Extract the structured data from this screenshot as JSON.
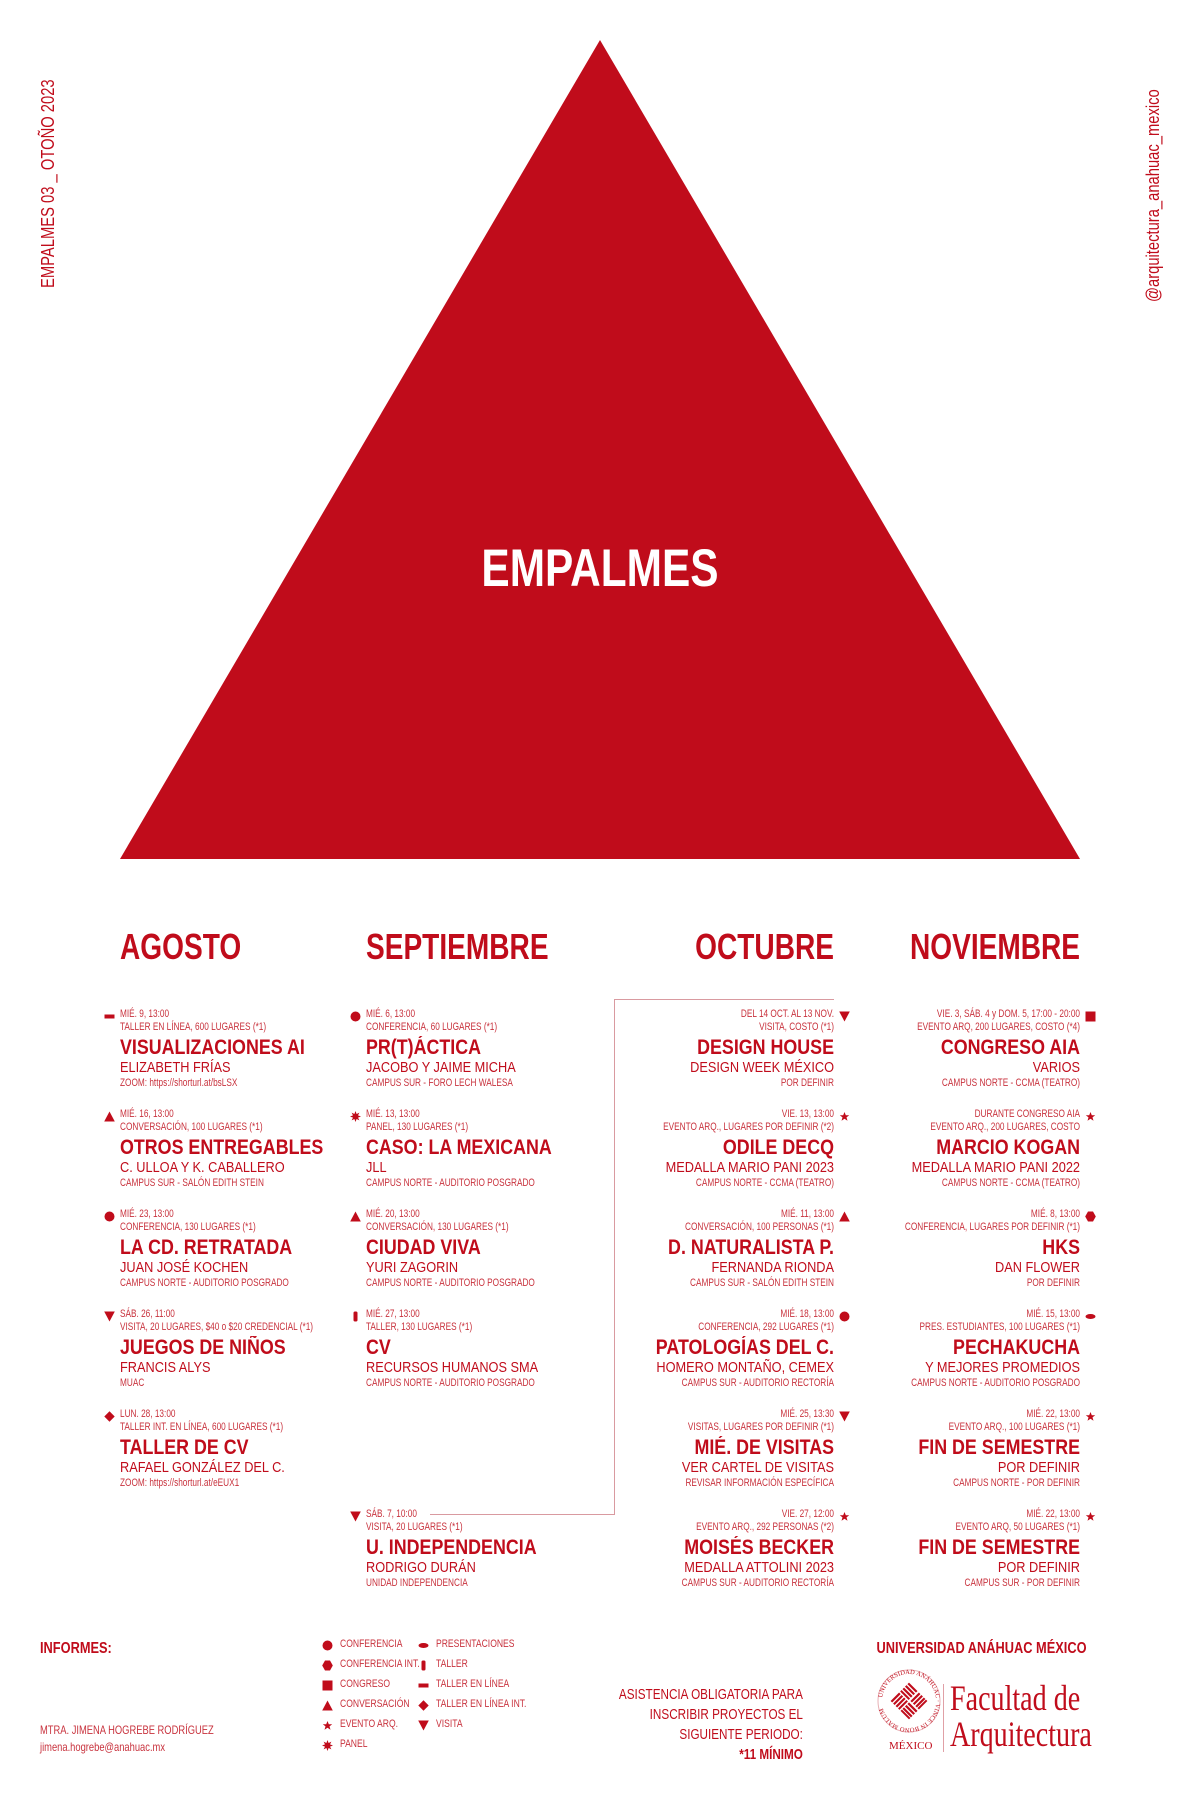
{
  "side_left": "EMPALMES 03 _ OTOÑO 2023",
  "side_right": "@arquitectura_anahuac_mexico",
  "hero_title": "EMPALMES",
  "colors": {
    "brand_red": "#c00c1b",
    "light_red": "#c8323d",
    "background": "#ffffff"
  },
  "months": [
    {
      "name": "AGOSTO",
      "events": [
        {
          "icon": "taller-en-linea",
          "date": "MIÉ. 9, 13:00",
          "type": "TALLER EN LÍNEA, 600 LUGARES (*1)",
          "title": "VISUALIZACIONES AI",
          "subtitle": "ELIZABETH FRÍAS",
          "location": "ZOOM: https://shorturl.at/bsLSX"
        },
        {
          "icon": "conversacion",
          "date": "MIÉ. 16, 13:00",
          "type": "CONVERSACIÓN, 100 LUGARES (*1)",
          "title": "OTROS ENTREGABLES",
          "subtitle": "C. ULLOA Y K. CABALLERO",
          "location": "CAMPUS SUR - SALÓN EDITH STEIN"
        },
        {
          "icon": "conferencia",
          "date": "MIÉ. 23, 13:00",
          "type": "CONFERENCIA, 130 LUGARES (*1)",
          "title": "LA CD. RETRATADA",
          "subtitle": "JUAN JOSÉ KOCHEN",
          "location": "CAMPUS NORTE - AUDITORIO POSGRADO"
        },
        {
          "icon": "visita",
          "date": "SÁB. 26, 11:00",
          "type": "VISITA, 20 LUGARES, $40 o $20 CREDENCIAL (*1)",
          "title": "JUEGOS DE NIÑOS",
          "subtitle": "FRANCIS ALYS",
          "location": "MUAC"
        },
        {
          "icon": "taller-en-linea-int",
          "date": "LUN. 28, 13:00",
          "type": "TALLER INT. EN LÍNEA, 600 LUGARES (*1)",
          "title": "TALLER DE CV",
          "subtitle": "RAFAEL GONZÁLEZ DEL C.",
          "location": "ZOOM: https://shorturl.at/eEUX1"
        }
      ]
    },
    {
      "name": "SEPTIEMBRE",
      "events": [
        {
          "icon": "conferencia",
          "date": "MIÉ. 6, 13:00",
          "type": "CONFERENCIA, 60 LUGARES (*1)",
          "title": "PR(T)ÁCTICA",
          "subtitle": "JACOBO Y JAIME MICHA",
          "location": "CAMPUS SUR - FORO LECH WALESA"
        },
        {
          "icon": "panel",
          "date": "MIÉ. 13, 13:00",
          "type": "PANEL, 130 LUGARES (*1)",
          "title": "CASO: LA MEXICANA",
          "subtitle": "JLL",
          "location": "CAMPUS NORTE - AUDITORIO POSGRADO"
        },
        {
          "icon": "conversacion",
          "date": "MIÉ. 20, 13:00",
          "type": "CONVERSACIÓN, 130 LUGARES (*1)",
          "title": "CIUDAD VIVA",
          "subtitle": "YURI ZAGORIN",
          "location": "CAMPUS NORTE - AUDITORIO POSGRADO"
        },
        {
          "icon": "taller",
          "date": "MIÉ. 27, 13:00",
          "type": "TALLER, 130 LUGARES (*1)",
          "title": "CV",
          "subtitle": "RECURSOS HUMANOS SMA",
          "location": "CAMPUS NORTE - AUDITORIO POSGRADO"
        },
        {
          "icon": "visita",
          "date": "SÁB. 7, 10:00",
          "type": "VISITA, 20 LUGARES (*1)",
          "title": "U. INDEPENDENCIA",
          "subtitle": "RODRIGO DURÁN",
          "location": "UNIDAD INDEPENDENCIA"
        }
      ]
    },
    {
      "name": "OCTUBRE",
      "events": [
        {
          "icon": "visita",
          "date": "DEL 14 OCT. AL 13 NOV.",
          "type": "VISITA, COSTO (*1)",
          "title": "DESIGN HOUSE",
          "subtitle": "DESIGN WEEK MÉXICO",
          "location": "POR DEFINIR"
        },
        {
          "icon": "evento-arq",
          "date": "VIE. 13, 13:00",
          "type": "EVENTO ARQ., LUGARES POR DEFINIR (*2)",
          "title": "ODILE DECQ",
          "subtitle": "MEDALLA MARIO PANI 2023",
          "location": "CAMPUS NORTE - CCMA (TEATRO)"
        },
        {
          "icon": "conversacion",
          "date": "MIÉ. 11, 13:00",
          "type": "CONVERSACIÓN, 100 PERSONAS (*1)",
          "title": "D. NATURALISTA P.",
          "subtitle": "FERNANDA RIONDA",
          "location": "CAMPUS SUR - SALÓN EDITH STEIN"
        },
        {
          "icon": "conferencia",
          "date": "MIÉ. 18, 13:00",
          "type": "CONFERENCIA, 292 LUGARES (*1)",
          "title": "PATOLOGÍAS DEL C.",
          "subtitle": "HOMERO MONTAÑO, CEMEX",
          "location": "CAMPUS SUR - AUDITORIO RECTORÍA"
        },
        {
          "icon": "visita",
          "date": "MIÉ. 25, 13:30",
          "type": "VISITAS, LUGARES POR DEFINIR (*1)",
          "title": "MIÉ. DE VISITAS",
          "subtitle": "VER CARTEL DE VISITAS",
          "location": "REVISAR INFORMACIÓN ESPECÍFICA"
        },
        {
          "icon": "evento-arq",
          "date": "VIE. 27, 12:00",
          "type": "EVENTO ARQ., 292 PERSONAS (*2)",
          "title": "MOISÉS BECKER",
          "subtitle": "MEDALLA ATTOLINI 2023",
          "location": "CAMPUS SUR - AUDITORIO RECTORÍA"
        }
      ]
    },
    {
      "name": "NOVIEMBRE",
      "events": [
        {
          "icon": "congreso",
          "date": "VIE. 3, SÁB. 4 y DOM. 5, 17:00 - 20:00",
          "type": "EVENTO ARQ, 200 LUGARES, COSTO (*4)",
          "title": "CONGRESO AIA",
          "subtitle": "VARIOS",
          "location": "CAMPUS NORTE - CCMA (TEATRO)"
        },
        {
          "icon": "evento-arq",
          "date": "DURANTE CONGRESO AIA",
          "type": "EVENTO ARQ., 200 LUGARES, COSTO",
          "title": "MARCIO KOGAN",
          "subtitle": "MEDALLA MARIO PANI 2022",
          "location": "CAMPUS NORTE - CCMA (TEATRO)"
        },
        {
          "icon": "conferencia-int",
          "date": "MIÉ. 8, 13:00",
          "type": "CONFERENCIA, LUGARES POR DEFINIR (*1)",
          "title": "HKS",
          "subtitle": "DAN FLOWER",
          "location": "POR DEFINIR"
        },
        {
          "icon": "presentaciones",
          "date": "MIÉ. 15, 13:00",
          "type": "PRES. ESTUDIANTES, 100 LUGARES (*1)",
          "title": "PECHAKUCHA",
          "subtitle": "Y MEJORES PROMEDIOS",
          "location": "CAMPUS NORTE - AUDITORIO POSGRADO"
        },
        {
          "icon": "evento-arq",
          "date": "MIÉ. 22, 13:00",
          "type": "EVENTO ARQ., 100 LUGARES (*1)",
          "title": "FIN DE SEMESTRE",
          "subtitle": "POR DEFINIR",
          "location": "CAMPUS NORTE - POR DEFINIR"
        },
        {
          "icon": "evento-arq",
          "date": "MIÉ. 22, 13:00",
          "type": "EVENTO ARQ, 50 LUGARES (*1)",
          "title": "FIN DE SEMESTRE",
          "subtitle": "POR DEFINIR",
          "location": "CAMPUS SUR - POR DEFINIR"
        }
      ]
    }
  ],
  "footer": {
    "informes_label": "INFORMES:",
    "contact_name": "MTRA. JIMENA HOGREBE RODRÍGUEZ",
    "contact_email": "jimena.hogrebe@anahuac.mx",
    "legend": [
      {
        "icon": "conferencia",
        "label": "CONFERENCIA"
      },
      {
        "icon": "conferencia-int",
        "label": "CONFERENCIA INT."
      },
      {
        "icon": "congreso",
        "label": "CONGRESO"
      },
      {
        "icon": "conversacion",
        "label": "CONVERSACIÓN"
      },
      {
        "icon": "evento-arq",
        "label": "EVENTO ARQ."
      },
      {
        "icon": "panel",
        "label": "PANEL"
      },
      {
        "icon": "presentaciones",
        "label": "PRESENTACIONES"
      },
      {
        "icon": "taller",
        "label": "TALLER"
      },
      {
        "icon": "taller-en-linea",
        "label": "TALLER EN LÍNEA"
      },
      {
        "icon": "taller-en-linea-int",
        "label": "TALLER EN LÍNEA INT."
      },
      {
        "icon": "visita",
        "label": "VISITA"
      }
    ],
    "notice_lines": [
      "ASISTENCIA OBLIGATORIA PARA",
      "INSCRIBIR PROYECTOS EL",
      "SIGUIENTE PERIODO:"
    ],
    "notice_emphasis": "*11 MÍNIMO",
    "university": "UNIVERSIDAD ANÁHUAC MÉXICO",
    "seal_text": "UNIVERSIDAD ANÁHUAC · VINCE IN BONO MALUM",
    "seal_country": "MÉXICO",
    "faculty_line1": "Facultad de",
    "faculty_line2": "Arquitectura"
  }
}
